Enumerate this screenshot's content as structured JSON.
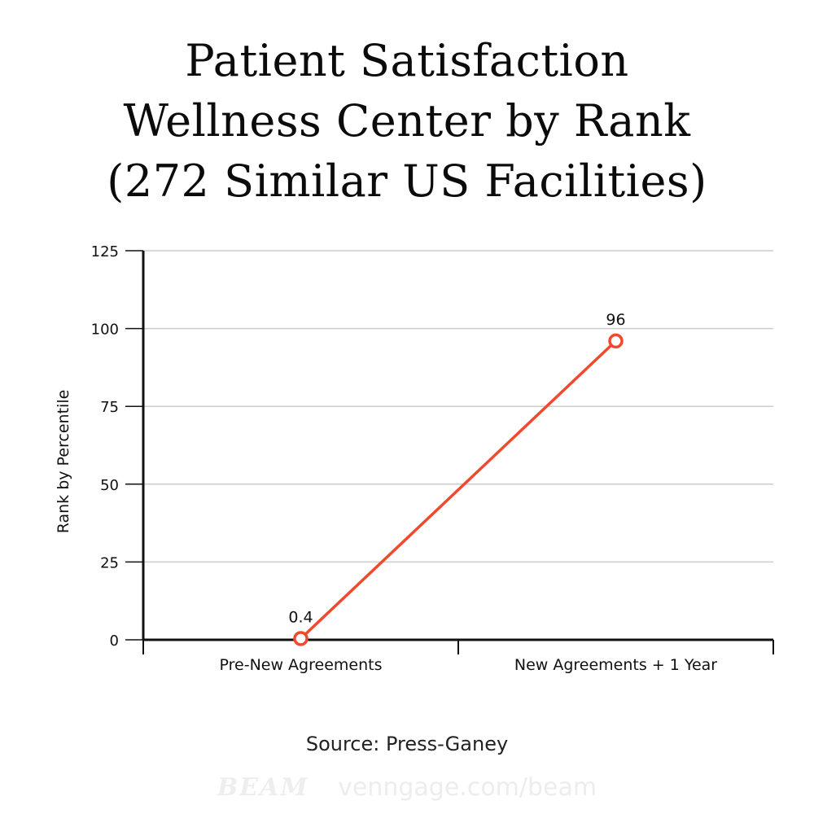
{
  "chart_data": {
    "type": "line",
    "title_lines": [
      "Patient Satisfaction",
      "Wellness Center by Rank",
      "(272 Similar US Facilities)"
    ],
    "xlabel": "",
    "ylabel": "Rank by Percentile",
    "categories": [
      "Pre-New Agreements",
      "New Agreements + 1 Year"
    ],
    "values": [
      0.4,
      96
    ],
    "data_labels": [
      "0.4",
      "96"
    ],
    "ylim": [
      0,
      125
    ],
    "yticks": [
      0,
      25,
      50,
      75,
      100,
      125
    ],
    "grid": true,
    "legend": "none",
    "line_color": "#ee4a2f"
  },
  "footer": {
    "source": "Source: Press-Ganey",
    "brand": "BEAM",
    "site": "venngage.com/beam"
  }
}
